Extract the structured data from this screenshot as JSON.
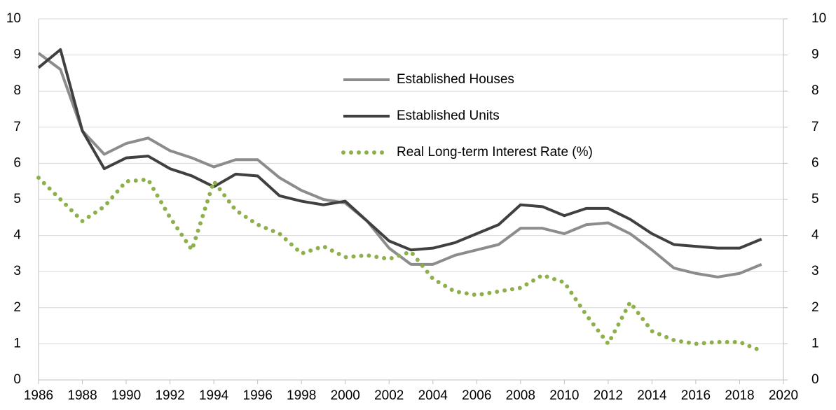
{
  "chart_data": {
    "type": "line",
    "x": [
      1986,
      1987,
      1988,
      1989,
      1990,
      1991,
      1992,
      1993,
      1994,
      1995,
      1996,
      1997,
      1998,
      1999,
      2000,
      2001,
      2002,
      2003,
      2004,
      2005,
      2006,
      2007,
      2008,
      2009,
      2010,
      2011,
      2012,
      2013,
      2014,
      2015,
      2016,
      2017,
      2018,
      2019
    ],
    "series": [
      {
        "name": "Established Houses",
        "color": "#8c8c8c",
        "style": "solid",
        "values": [
          9.05,
          8.6,
          6.9,
          6.25,
          6.55,
          6.7,
          6.35,
          6.15,
          5.9,
          6.1,
          6.1,
          5.6,
          5.25,
          5.0,
          4.9,
          4.4,
          3.65,
          3.2,
          3.2,
          3.45,
          3.6,
          3.75,
          4.2,
          4.2,
          4.05,
          4.3,
          4.35,
          4.05,
          3.6,
          3.1,
          2.95,
          2.85,
          2.95,
          3.2
        ]
      },
      {
        "name": "Established Units",
        "color": "#404040",
        "style": "solid",
        "values": [
          8.65,
          9.15,
          6.9,
          5.85,
          6.15,
          6.2,
          5.85,
          5.65,
          5.35,
          5.7,
          5.65,
          5.1,
          4.95,
          4.85,
          4.95,
          4.4,
          3.85,
          3.6,
          3.65,
          3.8,
          4.05,
          4.3,
          4.85,
          4.8,
          4.55,
          4.75,
          4.75,
          4.45,
          4.05,
          3.75,
          3.7,
          3.65,
          3.65,
          3.9
        ]
      },
      {
        "name": "Real Long-term Interest Rate (%)",
        "color": "#8db04a",
        "style": "dotted",
        "values": [
          5.6,
          5.0,
          4.4,
          4.8,
          5.5,
          5.55,
          4.5,
          3.6,
          5.5,
          4.7,
          4.3,
          4.05,
          3.5,
          3.7,
          3.4,
          3.45,
          3.35,
          3.55,
          2.8,
          2.45,
          2.35,
          2.45,
          2.55,
          2.9,
          2.7,
          1.8,
          1.0,
          2.15,
          1.35,
          1.1,
          1.0,
          1.05,
          1.05,
          0.8
        ]
      }
    ],
    "xlim": [
      1986,
      2020
    ],
    "xticks": [
      1986,
      1988,
      1990,
      1992,
      1994,
      1996,
      1998,
      2000,
      2002,
      2004,
      2006,
      2008,
      2010,
      2012,
      2014,
      2016,
      2018,
      2020
    ],
    "ylim": [
      0,
      10
    ],
    "yticks": [
      0,
      1,
      2,
      3,
      4,
      5,
      6,
      7,
      8,
      9,
      10
    ],
    "y2lim": [
      0,
      10
    ],
    "y2ticks": [
      0,
      1,
      2,
      3,
      4,
      5,
      6,
      7,
      8,
      9,
      10
    ],
    "grid": true
  }
}
